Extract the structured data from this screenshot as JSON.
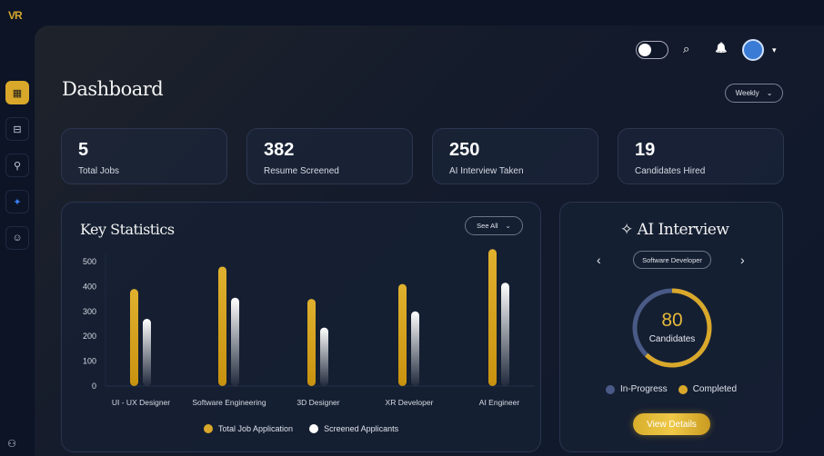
{
  "brand": "VR",
  "sidebar": [
    {
      "icon": "dashboard-icon",
      "glyph": "▦"
    },
    {
      "icon": "briefcase-icon",
      "glyph": "⊟"
    },
    {
      "icon": "people-search-icon",
      "glyph": "⚲"
    },
    {
      "icon": "sparkle-icon",
      "glyph": "✦"
    },
    {
      "icon": "team-icon",
      "glyph": "☺"
    }
  ],
  "header": {
    "title": "Dashboard",
    "period": "Weekly",
    "search_glyph": "⌕",
    "bell_glyph": "🔔",
    "caret": "▾"
  },
  "stats": [
    {
      "value": "5",
      "label": "Total Jobs"
    },
    {
      "value": "382",
      "label": "Resume Screened"
    },
    {
      "value": "250",
      "label": "AI Interview Taken"
    },
    {
      "value": "19",
      "label": "Candidates Hired"
    }
  ],
  "key_stats": {
    "title": "Key Statistics",
    "see_all": "See All"
  },
  "chart_data": {
    "type": "bar",
    "title": "Key Statistics",
    "categories": [
      "UI - UX Designer",
      "Software Engineering",
      "3D Designer",
      "XR Developer",
      "AI Engineer"
    ],
    "series": [
      {
        "name": "Total Job Application",
        "color": "#d9a82a",
        "values": [
          390,
          480,
          350,
          410,
          550
        ]
      },
      {
        "name": "Screened Applicants",
        "color": "#ffffff",
        "values": [
          270,
          355,
          235,
          300,
          415
        ]
      }
    ],
    "yticks": [
      "0",
      "100",
      "200",
      "300",
      "400",
      "500"
    ],
    "ylim": [
      0,
      500
    ],
    "legend": "bottom"
  },
  "ai_interview": {
    "title": "AI Interview",
    "role": "Software Developer",
    "prev": "‹",
    "next": "›",
    "count": "80",
    "count_label": "Candidates",
    "completed_fraction": 0.62,
    "legend": [
      {
        "label": "In-Progress",
        "color": "#4a5a86"
      },
      {
        "label": "Completed",
        "color": "#d9a82a"
      }
    ],
    "button": "View Details"
  }
}
